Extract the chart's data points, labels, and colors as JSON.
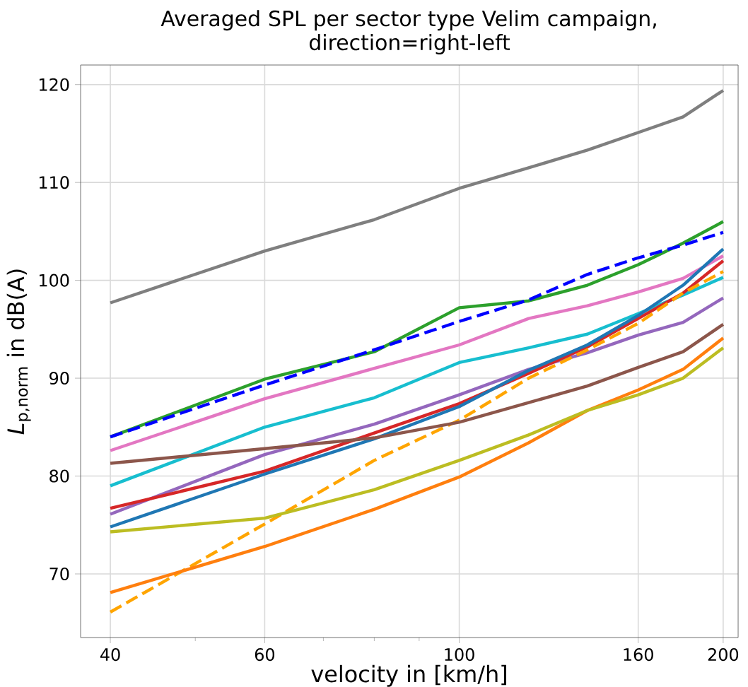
{
  "chart_data": {
    "type": "line",
    "title": "Averaged SPL per sector type Velim campaign,\ndirection=right-left",
    "xlabel": "velocity in [km/h]",
    "ylabel": "*L*$_{p,norm}$ in dB(A)",
    "x": [
      40,
      60,
      80,
      100,
      120,
      140,
      160,
      180,
      200
    ],
    "log": "x",
    "grid": true,
    "xlim": [
      37,
      208
    ],
    "ylim": [
      63.5,
      122
    ],
    "xticks": [
      40,
      {
        "value": 50,
        "label": null
      },
      60,
      {
        "value": 70,
        "label": null
      },
      {
        "value": 80,
        "label": null
      },
      {
        "value": 90,
        "label": null
      },
      100,
      160,
      200
    ],
    "yticks": [
      70,
      80,
      90,
      100,
      110,
      120
    ],
    "series": [
      {
        "color": "#7f7f7f",
        "values": [
          97.7,
          103.0,
          106.2,
          109.4,
          111.5,
          113.3,
          115.1,
          116.7,
          119.4
        ]
      },
      {
        "color": "#2ca02c",
        "values": [
          84.0,
          89.9,
          92.7,
          97.2,
          97.9,
          99.5,
          101.6,
          103.8,
          106.0
        ]
      },
      {
        "color": "#0000ff",
        "line_style": "dashed",
        "values": [
          84.0,
          89.3,
          92.9,
          95.8,
          98.0,
          100.6,
          102.3,
          103.6,
          104.9
        ]
      },
      {
        "color": "#e377c2",
        "values": [
          82.6,
          87.9,
          91.0,
          93.4,
          96.1,
          97.4,
          98.8,
          100.2,
          102.5
        ]
      },
      {
        "color": "#17becf",
        "values": [
          79.0,
          85.0,
          88.0,
          91.6,
          93.1,
          94.5,
          96.6,
          98.5,
          100.3
        ]
      },
      {
        "color": "#9467bd",
        "values": [
          76.1,
          82.2,
          85.3,
          88.3,
          90.9,
          92.6,
          94.4,
          95.7,
          98.2
        ]
      },
      {
        "color": "#d62728",
        "values": [
          76.7,
          80.5,
          84.4,
          87.4,
          90.5,
          93.2,
          96.1,
          98.7,
          102.0
        ]
      },
      {
        "color": "#1f77b4",
        "values": [
          74.8,
          80.2,
          83.8,
          87.1,
          90.8,
          93.4,
          96.4,
          99.5,
          103.2
        ]
      },
      {
        "color": "#ffa500",
        "line_style": "dashed",
        "values": [
          66.1,
          75.1,
          81.6,
          85.7,
          90.0,
          92.9,
          95.6,
          98.7,
          100.9
        ]
      },
      {
        "color": "#8c564b",
        "values": [
          81.3,
          82.8,
          83.9,
          85.5,
          87.5,
          89.2,
          91.1,
          92.7,
          95.5
        ]
      },
      {
        "color": "#ff7f0e",
        "values": [
          68.1,
          72.8,
          76.6,
          79.9,
          83.4,
          86.7,
          88.8,
          90.9,
          94.1
        ]
      },
      {
        "color": "#bcbd22",
        "values": [
          74.3,
          75.7,
          78.6,
          81.6,
          84.2,
          86.7,
          88.3,
          90.0,
          93.1
        ]
      }
    ]
  }
}
